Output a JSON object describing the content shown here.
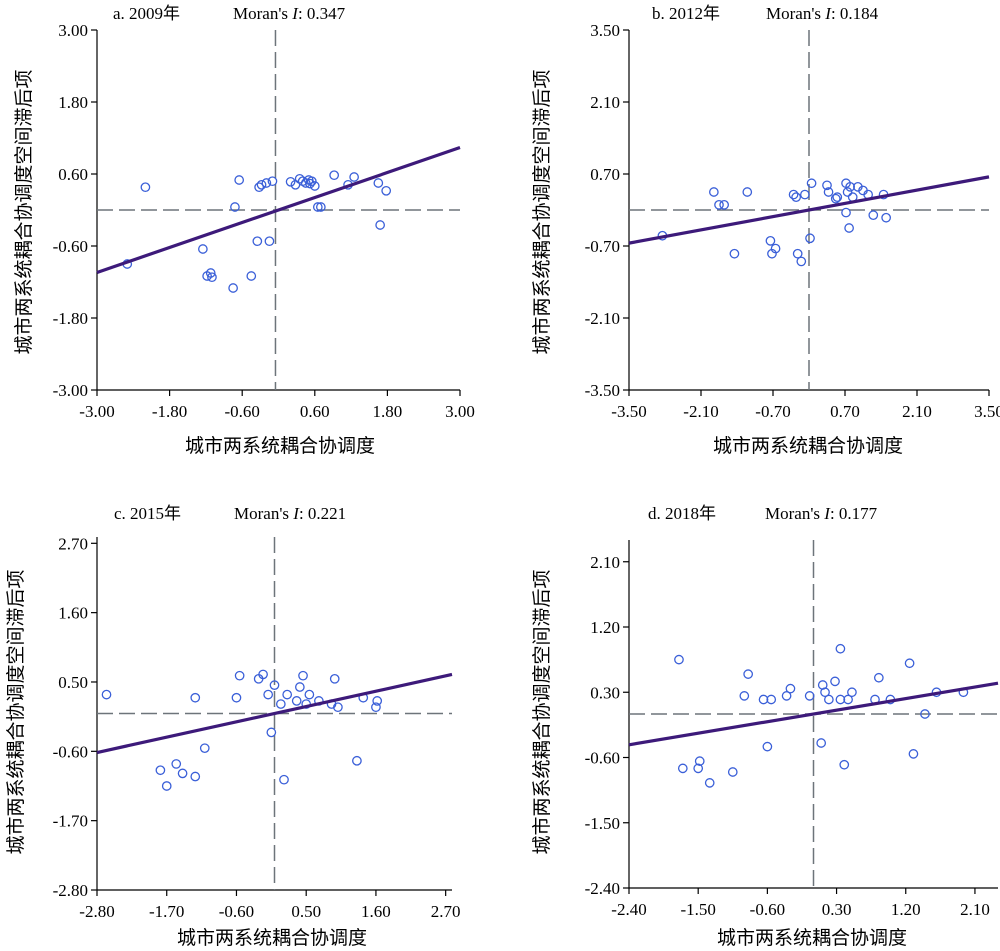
{
  "chart_data": [
    {
      "type": "scatter",
      "panel_label": "a. 2009年",
      "stat_label": "Moran's",
      "stat_symbol": "I",
      "stat_value": ": 0.347",
      "xlabel": "城市两系统耦合协调度",
      "ylabel": "城市两系统耦合协调度空间滞后项",
      "xlim": [
        -3.0,
        3.0
      ],
      "ylim": [
        -3.0,
        3.0
      ],
      "xticks": [
        "-3.00",
        "-1.80",
        "-0.60",
        "0.60",
        "1.80",
        "3.00"
      ],
      "yticks": [
        "-3.00",
        "-1.80",
        "-0.60",
        "0.60",
        "1.80",
        "3.00"
      ],
      "xtick_values": [
        -3.0,
        -1.8,
        -0.6,
        0.6,
        1.8,
        3.0
      ],
      "ytick_values": [
        -3.0,
        -1.8,
        -0.6,
        0.6,
        1.8,
        3.0
      ],
      "mean_x": -0.05,
      "mean_y": 0.0,
      "slope": 0.347,
      "intercept": 0.0,
      "fit_x_range": [
        -3.0,
        3.0
      ],
      "points": [
        [
          -2.5,
          -0.9
        ],
        [
          -2.2,
          0.38
        ],
        [
          -1.25,
          -0.65
        ],
        [
          -1.18,
          -1.1
        ],
        [
          -1.12,
          -1.05
        ],
        [
          -1.1,
          -1.12
        ],
        [
          -0.75,
          -1.3
        ],
        [
          -0.72,
          0.05
        ],
        [
          -0.65,
          0.5
        ],
        [
          -0.45,
          -1.1
        ],
        [
          -0.35,
          -0.52
        ],
        [
          -0.32,
          0.38
        ],
        [
          -0.28,
          0.42
        ],
        [
          -0.2,
          0.45
        ],
        [
          -0.15,
          -0.52
        ],
        [
          -0.1,
          0.48
        ],
        [
          0.2,
          0.47
        ],
        [
          0.28,
          0.42
        ],
        [
          0.35,
          0.52
        ],
        [
          0.4,
          0.48
        ],
        [
          0.45,
          0.45
        ],
        [
          0.5,
          0.5
        ],
        [
          0.52,
          0.44
        ],
        [
          0.55,
          0.48
        ],
        [
          0.6,
          0.4
        ],
        [
          0.65,
          0.05
        ],
        [
          0.7,
          0.05
        ],
        [
          0.92,
          0.58
        ],
        [
          1.15,
          0.42
        ],
        [
          1.25,
          0.55
        ],
        [
          1.65,
          0.45
        ],
        [
          1.68,
          -0.25
        ],
        [
          1.78,
          0.32
        ]
      ],
      "colors": {
        "point": "#3a5fd8",
        "fit": "#3d1a7a",
        "guide": "#6d747a",
        "axis": "#000000"
      }
    },
    {
      "type": "scatter",
      "panel_label": "b. 2012年",
      "stat_label": "Moran's",
      "stat_symbol": "I",
      "stat_value": ": 0.184",
      "xlabel": "城市两系统耦合协调度",
      "ylabel": "城市两系统耦合协调度空间滞后项",
      "xlim": [
        -3.5,
        3.5
      ],
      "ylim": [
        -3.5,
        3.5
      ],
      "xticks": [
        "-3.50",
        "-2.10",
        "-0.70",
        "0.70",
        "2.10",
        "3.50"
      ],
      "yticks": [
        "-3.50",
        "-2.10",
        "-0.70",
        "0.70",
        "2.10",
        "3.50"
      ],
      "xtick_values": [
        -3.5,
        -2.1,
        -0.7,
        0.7,
        2.1,
        3.5
      ],
      "ytick_values": [
        -3.5,
        -2.1,
        -0.7,
        0.7,
        2.1,
        3.5
      ],
      "mean_x": 0.0,
      "mean_y": 0.0,
      "slope": 0.184,
      "intercept": 0.0,
      "fit_x_range": [
        -3.5,
        3.5
      ],
      "points": [
        [
          -2.85,
          -0.5
        ],
        [
          -1.85,
          0.35
        ],
        [
          -1.75,
          0.1
        ],
        [
          -1.65,
          0.1
        ],
        [
          -1.45,
          -0.85
        ],
        [
          -1.2,
          0.35
        ],
        [
          -0.75,
          -0.6
        ],
        [
          -0.72,
          -0.85
        ],
        [
          -0.65,
          -0.75
        ],
        [
          -0.3,
          0.3
        ],
        [
          -0.25,
          0.25
        ],
        [
          -0.22,
          -0.85
        ],
        [
          -0.15,
          -1.0
        ],
        [
          -0.08,
          0.3
        ],
        [
          0.02,
          -0.55
        ],
        [
          0.05,
          0.52
        ],
        [
          0.35,
          0.48
        ],
        [
          0.38,
          0.35
        ],
        [
          0.52,
          0.22
        ],
        [
          0.55,
          0.25
        ],
        [
          0.72,
          0.52
        ],
        [
          0.75,
          0.35
        ],
        [
          0.8,
          0.45
        ],
        [
          0.85,
          0.25
        ],
        [
          0.95,
          0.45
        ],
        [
          1.05,
          0.38
        ],
        [
          1.15,
          0.3
        ],
        [
          1.25,
          -0.1
        ],
        [
          1.45,
          0.3
        ],
        [
          1.5,
          -0.15
        ],
        [
          0.72,
          -0.05
        ],
        [
          0.78,
          -0.35
        ]
      ],
      "colors": {
        "point": "#3a5fd8",
        "fit": "#3d1a7a",
        "guide": "#6d747a",
        "axis": "#000000"
      }
    },
    {
      "type": "scatter",
      "panel_label": "c. 2015年",
      "stat_label": "Moran's",
      "stat_symbol": "I",
      "stat_value": ": 0.221",
      "xlabel": "城市两系统耦合协调度",
      "ylabel": "城市两系统耦合协调度空间滞后项",
      "xlim": [
        -2.8,
        2.8
      ],
      "ylim": [
        -2.8,
        2.8
      ],
      "xticks": [
        "-2.80",
        "-1.70",
        "-0.60",
        "0.50",
        "1.60",
        "2.70"
      ],
      "yticks": [
        "-2.80",
        "-1.70",
        "-0.60",
        "0.50",
        "1.60",
        "2.70"
      ],
      "xtick_values": [
        -2.8,
        -1.7,
        -0.6,
        0.5,
        1.6,
        2.7
      ],
      "ytick_values": [
        -2.8,
        -1.7,
        -0.6,
        0.5,
        1.6,
        2.7
      ],
      "mean_x": 0.0,
      "mean_y": 0.0,
      "slope": 0.221,
      "intercept": 0.0,
      "fit_x_range": [
        -2.8,
        2.8
      ],
      "points": [
        [
          -2.65,
          0.3
        ],
        [
          -1.8,
          -0.9
        ],
        [
          -1.7,
          -1.15
        ],
        [
          -1.55,
          -0.8
        ],
        [
          -1.45,
          -0.95
        ],
        [
          -1.25,
          -1.0
        ],
        [
          -1.25,
          0.25
        ],
        [
          -1.1,
          -0.55
        ],
        [
          -0.6,
          0.25
        ],
        [
          -0.55,
          0.6
        ],
        [
          -0.25,
          0.55
        ],
        [
          -0.18,
          0.62
        ],
        [
          -0.1,
          0.3
        ],
        [
          -0.05,
          -0.3
        ],
        [
          0.0,
          0.45
        ],
        [
          0.1,
          0.15
        ],
        [
          0.15,
          -1.05
        ],
        [
          0.2,
          0.3
        ],
        [
          0.35,
          0.2
        ],
        [
          0.4,
          0.42
        ],
        [
          0.45,
          0.6
        ],
        [
          0.5,
          0.15
        ],
        [
          0.55,
          0.3
        ],
        [
          0.7,
          0.2
        ],
        [
          0.9,
          0.15
        ],
        [
          0.95,
          0.55
        ],
        [
          1.0,
          0.1
        ],
        [
          1.3,
          -0.75
        ],
        [
          1.4,
          0.25
        ],
        [
          1.6,
          0.1
        ],
        [
          1.62,
          0.2
        ]
      ],
      "colors": {
        "point": "#3a5fd8",
        "fit": "#3d1a7a",
        "guide": "#6d747a",
        "axis": "#000000"
      }
    },
    {
      "type": "scatter",
      "panel_label": "d. 2018年",
      "stat_label": "Moran's",
      "stat_symbol": "I",
      "stat_value": ": 0.177",
      "xlabel": "城市两系统耦合协调度",
      "ylabel": "城市两系统耦合协调度空间滞后项",
      "xlim": [
        -2.4,
        2.4
      ],
      "ylim": [
        -2.4,
        2.4
      ],
      "xticks": [
        "-2.40",
        "-1.50",
        "-0.60",
        "0.30",
        "1.20",
        "2.10"
      ],
      "yticks": [
        "-2.40",
        "-1.50",
        "-0.60",
        "0.30",
        "1.20",
        "2.10"
      ],
      "xtick_values": [
        -2.4,
        -1.5,
        -0.6,
        0.3,
        1.2,
        2.1
      ],
      "ytick_values": [
        -2.4,
        -1.5,
        -0.6,
        0.3,
        1.2,
        2.1
      ],
      "mean_x": 0.0,
      "mean_y": 0.0,
      "slope": 0.177,
      "intercept": 0.0,
      "fit_x_range": [
        -2.4,
        2.4
      ],
      "points": [
        [
          -1.75,
          0.75
        ],
        [
          -1.7,
          -0.75
        ],
        [
          -1.5,
          -0.75
        ],
        [
          -1.48,
          -0.65
        ],
        [
          -1.35,
          -0.95
        ],
        [
          -1.05,
          -0.8
        ],
        [
          -0.9,
          0.25
        ],
        [
          -0.85,
          0.55
        ],
        [
          -0.65,
          0.2
        ],
        [
          -0.6,
          -0.45
        ],
        [
          -0.55,
          0.2
        ],
        [
          -0.35,
          0.25
        ],
        [
          -0.3,
          0.35
        ],
        [
          -0.05,
          0.25
        ],
        [
          0.1,
          -0.4
        ],
        [
          0.12,
          0.4
        ],
        [
          0.15,
          0.3
        ],
        [
          0.2,
          0.2
        ],
        [
          0.28,
          0.45
        ],
        [
          0.35,
          0.2
        ],
        [
          0.35,
          0.9
        ],
        [
          0.4,
          -0.7
        ],
        [
          0.45,
          0.2
        ],
        [
          0.5,
          0.3
        ],
        [
          0.8,
          0.2
        ],
        [
          0.85,
          0.5
        ],
        [
          1.0,
          0.2
        ],
        [
          1.25,
          0.7
        ],
        [
          1.3,
          -0.55
        ],
        [
          1.45,
          0.0
        ],
        [
          1.6,
          0.3
        ],
        [
          1.95,
          0.3
        ]
      ],
      "colors": {
        "point": "#3a5fd8",
        "fit": "#3d1a7a",
        "guide": "#6d747a",
        "axis": "#000000"
      }
    }
  ]
}
